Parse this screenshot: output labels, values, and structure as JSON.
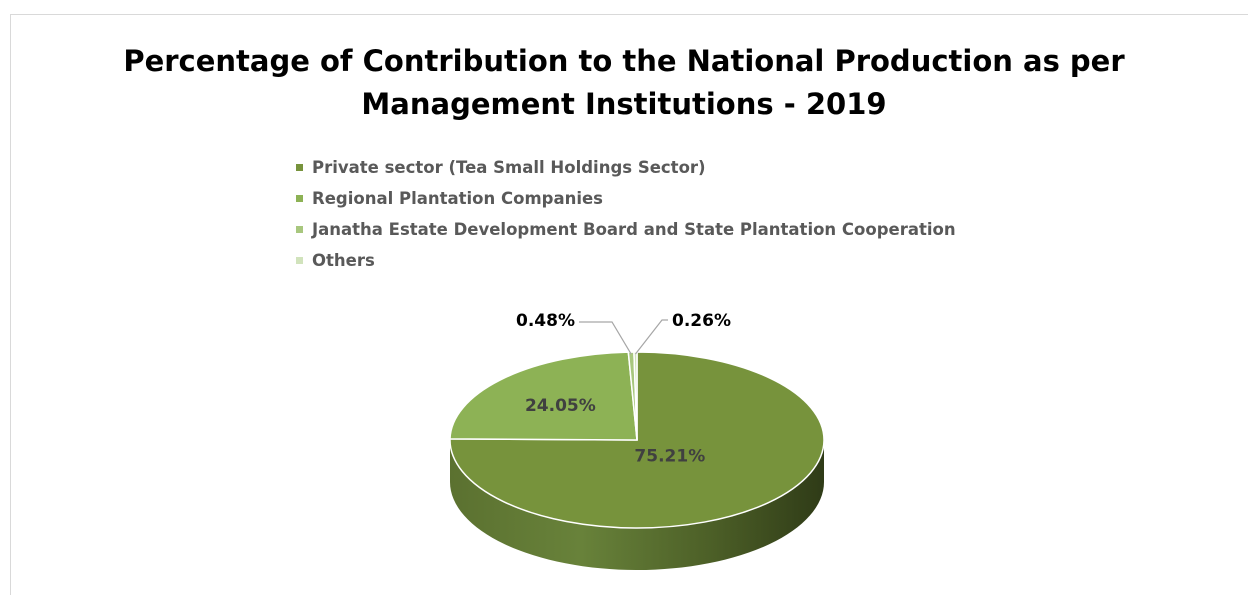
{
  "chart_data": {
    "type": "pie",
    "style": "3d",
    "title": "Percentage of Contribution to the National Production as per\nManagement Institutions - 2019",
    "categories": [
      "Private sector (Tea Small Holdings Sector)",
      "Regional Plantation Companies",
      "Janatha Estate Development Board and State Plantation Cooperation",
      "Others"
    ],
    "values": [
      75.21,
      24.05,
      0.48,
      0.26
    ],
    "data_labels": [
      "75.21%",
      "24.05%",
      "0.48%",
      "0.26%"
    ],
    "colors": [
      "#77933c",
      "#8db255",
      "#a8c77e",
      "#d1e3bc"
    ],
    "legend_position": "top"
  }
}
